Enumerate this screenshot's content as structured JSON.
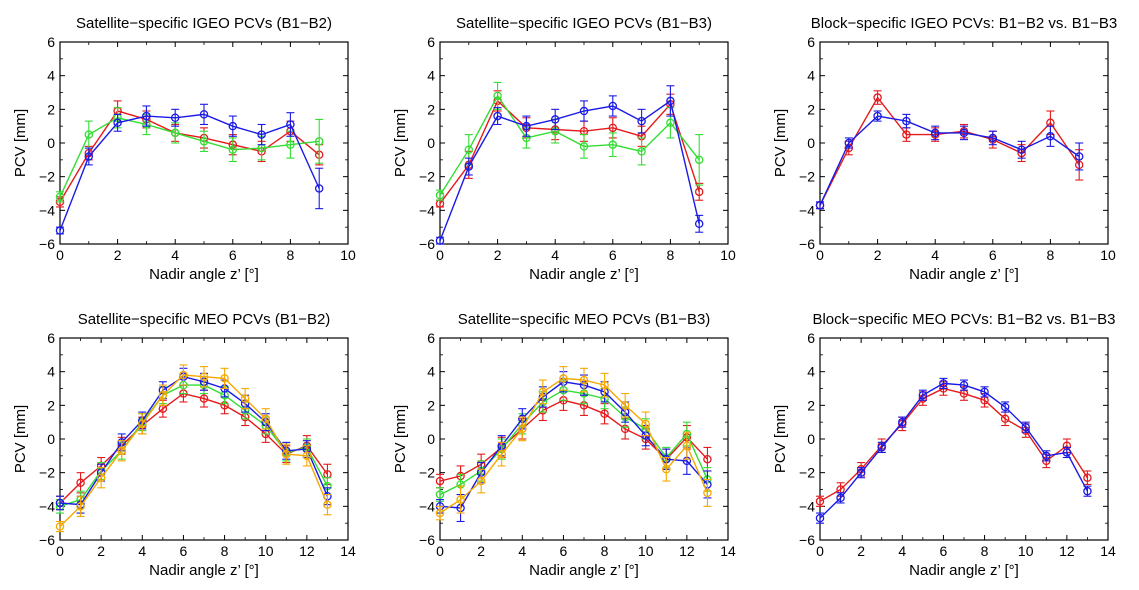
{
  "chart_data": [
    {
      "type": "line",
      "title": "Satellite−specific IGEO PCVs (B1−B2)",
      "xlabel": "Nadir angle z’ [°]",
      "ylabel": "PCV [mm]",
      "xlim": [
        0,
        10
      ],
      "ylim": [
        -6,
        6
      ],
      "xticks": [
        0,
        2,
        4,
        6,
        8,
        10
      ],
      "yticks": [
        -6,
        -4,
        -2,
        0,
        2,
        4,
        6
      ],
      "x": [
        0,
        1,
        2,
        3,
        4,
        5,
        6,
        7,
        8,
        9
      ],
      "series": [
        {
          "color": "#e41a1c",
          "values": [
            -3.5,
            -0.6,
            1.9,
            1.4,
            0.6,
            0.3,
            -0.1,
            -0.5,
            0.7,
            -0.7
          ],
          "errors": [
            0.3,
            0.4,
            0.6,
            0.5,
            0.5,
            0.6,
            0.6,
            0.6,
            0.6,
            0.6
          ]
        },
        {
          "color": "#33dd33",
          "values": [
            -3.2,
            0.5,
            1.5,
            1.1,
            0.6,
            0.1,
            -0.4,
            -0.3,
            -0.1,
            0.1
          ],
          "errors": [
            0.3,
            0.8,
            0.6,
            0.6,
            0.6,
            0.6,
            0.7,
            0.7,
            0.8,
            1.3
          ]
        },
        {
          "color": "#1a1ae6",
          "values": [
            -5.2,
            -0.8,
            1.2,
            1.6,
            1.5,
            1.7,
            1.0,
            0.5,
            1.1,
            -2.7
          ],
          "errors": [
            0.2,
            0.5,
            0.5,
            0.6,
            0.5,
            0.6,
            0.6,
            0.6,
            0.7,
            1.2
          ]
        }
      ]
    },
    {
      "type": "line",
      "title": "Satellite−specific IGEO PCVs (B1−B3)",
      "xlabel": "Nadir angle z’ [°]",
      "ylabel": "PCV [mm]",
      "xlim": [
        0,
        10
      ],
      "ylim": [
        -6,
        6
      ],
      "xticks": [
        0,
        2,
        4,
        6,
        8,
        10
      ],
      "yticks": [
        -6,
        -4,
        -2,
        0,
        2,
        4,
        6
      ],
      "x": [
        0,
        1,
        2,
        3,
        4,
        5,
        6,
        7,
        8,
        9
      ],
      "series": [
        {
          "color": "#e41a1c",
          "values": [
            -3.6,
            -1.3,
            2.5,
            0.9,
            0.8,
            0.7,
            0.9,
            0.4,
            2.3,
            -2.9
          ],
          "errors": [
            0.2,
            0.8,
            0.6,
            0.6,
            0.6,
            0.6,
            0.6,
            0.6,
            0.6,
            0.5
          ]
        },
        {
          "color": "#33dd33",
          "values": [
            -3.1,
            -0.4,
            2.8,
            0.3,
            0.7,
            -0.2,
            -0.1,
            -0.5,
            1.2,
            -1.0
          ],
          "errors": [
            0.3,
            0.9,
            0.8,
            0.6,
            0.7,
            0.7,
            0.7,
            0.8,
            0.9,
            1.5
          ]
        },
        {
          "color": "#1a1ae6",
          "values": [
            -5.8,
            -1.4,
            1.6,
            1.0,
            1.4,
            1.9,
            2.2,
            1.3,
            2.5,
            -4.8
          ],
          "errors": [
            0.2,
            0.5,
            0.5,
            0.6,
            0.6,
            0.6,
            0.6,
            0.7,
            0.9,
            0.5
          ]
        }
      ]
    },
    {
      "type": "line",
      "title": "Block−specific IGEO PCVs: B1−B2 vs. B1−B3",
      "xlabel": "Nadir angle z’ [°]",
      "ylabel": "PCV [mm]",
      "xlim": [
        0,
        10
      ],
      "ylim": [
        -6,
        6
      ],
      "xticks": [
        0,
        2,
        4,
        6,
        8,
        10
      ],
      "yticks": [
        -6,
        -4,
        -2,
        0,
        2,
        4,
        6
      ],
      "x": [
        0,
        1,
        2,
        3,
        4,
        5,
        6,
        7,
        8,
        9
      ],
      "series": [
        {
          "color": "#e41a1c",
          "values": [
            -3.7,
            -0.3,
            2.7,
            0.5,
            0.5,
            0.7,
            0.2,
            -0.6,
            1.2,
            -1.3
          ],
          "errors": [
            0.2,
            0.4,
            0.4,
            0.4,
            0.4,
            0.4,
            0.5,
            0.5,
            0.7,
            0.9
          ]
        },
        {
          "color": "#1a1ae6",
          "values": [
            -3.7,
            0.0,
            1.6,
            1.3,
            0.6,
            0.6,
            0.3,
            -0.4,
            0.4,
            -0.8
          ],
          "errors": [
            0.2,
            0.3,
            0.3,
            0.4,
            0.4,
            0.4,
            0.4,
            0.5,
            0.6,
            0.8
          ]
        }
      ]
    },
    {
      "type": "line",
      "title": "Satellite−specific MEO PCVs (B1−B2)",
      "xlabel": "Nadir angle z’ [°]",
      "ylabel": "PCV [mm]",
      "xlim": [
        0,
        14
      ],
      "ylim": [
        -6,
        6
      ],
      "xticks": [
        0,
        2,
        4,
        6,
        8,
        10,
        12,
        14
      ],
      "yticks": [
        -6,
        -4,
        -2,
        0,
        2,
        4,
        6
      ],
      "x": [
        0,
        1,
        2,
        3,
        4,
        5,
        6,
        7,
        8,
        9,
        10,
        11,
        12,
        13
      ],
      "series": [
        {
          "color": "#e41a1c",
          "values": [
            -3.8,
            -2.6,
            -1.6,
            -0.4,
            0.8,
            1.8,
            2.7,
            2.4,
            2.0,
            1.3,
            0.3,
            -0.9,
            -0.4,
            -2.1
          ],
          "errors": [
            0.4,
            0.6,
            0.5,
            0.5,
            0.5,
            0.5,
            0.5,
            0.5,
            0.5,
            0.5,
            0.5,
            0.5,
            0.6,
            0.6
          ]
        },
        {
          "color": "#33dd33",
          "values": [
            -4.0,
            -3.6,
            -1.9,
            -0.7,
            1.0,
            2.6,
            3.2,
            3.2,
            2.6,
            1.7,
            0.8,
            -0.8,
            -0.5,
            -2.8
          ],
          "errors": [
            0.4,
            0.5,
            0.5,
            0.5,
            0.5,
            0.5,
            0.5,
            0.5,
            0.5,
            0.5,
            0.5,
            0.5,
            0.5,
            0.5
          ]
        },
        {
          "color": "#1a1ae6",
          "values": [
            -3.8,
            -3.9,
            -2.0,
            -0.2,
            1.1,
            2.9,
            3.7,
            3.4,
            3.0,
            2.1,
            1.0,
            -0.7,
            -0.6,
            -3.4
          ],
          "errors": [
            0.4,
            0.5,
            0.5,
            0.5,
            0.5,
            0.5,
            0.5,
            0.5,
            0.5,
            0.5,
            0.5,
            0.5,
            0.5,
            0.5
          ]
        },
        {
          "color": "#f5a800",
          "values": [
            -5.2,
            -4.0,
            -2.3,
            -0.7,
            0.9,
            2.6,
            3.8,
            3.7,
            3.6,
            2.4,
            1.2,
            -0.9,
            -1.0,
            -3.9
          ],
          "errors": [
            0.3,
            0.6,
            0.6,
            0.6,
            0.6,
            0.6,
            0.6,
            0.6,
            0.6,
            0.6,
            0.6,
            0.6,
            0.6,
            0.6
          ]
        }
      ]
    },
    {
      "type": "line",
      "title": "Satellite−specific MEO PCVs (B1−B3)",
      "xlabel": "Nadir angle z’ [°]",
      "ylabel": "PCV [mm]",
      "xlim": [
        0,
        14
      ],
      "ylim": [
        -6,
        6
      ],
      "xticks": [
        0,
        2,
        4,
        6,
        8,
        10,
        12,
        14
      ],
      "yticks": [
        -6,
        -4,
        -2,
        0,
        2,
        4,
        6
      ],
      "x": [
        0,
        1,
        2,
        3,
        4,
        5,
        6,
        7,
        8,
        9,
        10,
        11,
        12,
        13
      ],
      "series": [
        {
          "color": "#e41a1c",
          "values": [
            -2.5,
            -2.2,
            -1.5,
            -0.5,
            0.6,
            1.7,
            2.3,
            2.0,
            1.5,
            0.6,
            0.0,
            -1.2,
            0.1,
            -1.2
          ],
          "errors": [
            0.4,
            0.6,
            0.6,
            0.6,
            0.6,
            0.6,
            0.6,
            0.6,
            0.6,
            0.6,
            0.6,
            0.6,
            0.7,
            0.7
          ]
        },
        {
          "color": "#33dd33",
          "values": [
            -3.3,
            -2.7,
            -1.9,
            -0.6,
            0.9,
            2.2,
            2.9,
            2.7,
            2.4,
            1.3,
            0.6,
            -1.1,
            0.3,
            -2.4
          ],
          "errors": [
            0.4,
            0.6,
            0.6,
            0.6,
            0.6,
            0.6,
            0.6,
            0.6,
            0.6,
            0.6,
            0.6,
            0.6,
            0.7,
            0.7
          ]
        },
        {
          "color": "#1a1ae6",
          "values": [
            -4.0,
            -4.1,
            -2.0,
            -0.4,
            1.2,
            2.5,
            3.4,
            3.2,
            2.8,
            1.6,
            0.2,
            -1.2,
            -1.3,
            -2.7
          ],
          "errors": [
            0.4,
            0.8,
            0.6,
            0.6,
            0.6,
            0.6,
            0.6,
            0.6,
            0.6,
            0.6,
            0.6,
            0.6,
            0.8,
            0.8
          ]
        },
        {
          "color": "#f5a800",
          "values": [
            -4.4,
            -3.6,
            -2.5,
            -0.9,
            0.6,
            2.8,
            3.6,
            3.5,
            3.2,
            2.0,
            0.9,
            -1.8,
            -0.4,
            -3.2
          ],
          "errors": [
            0.4,
            0.8,
            0.7,
            0.7,
            0.7,
            0.7,
            0.7,
            0.7,
            0.7,
            0.7,
            0.7,
            0.7,
            0.8,
            0.8
          ]
        }
      ]
    },
    {
      "type": "line",
      "title": "Block−specific MEO PCVs: B1−B2 vs. B1−B3",
      "xlabel": "Nadir angle z’ [°]",
      "ylabel": "PCV [mm]",
      "xlim": [
        0,
        14
      ],
      "ylim": [
        -6,
        6
      ],
      "xticks": [
        0,
        2,
        4,
        6,
        8,
        10,
        12,
        14
      ],
      "yticks": [
        -6,
        -4,
        -2,
        0,
        2,
        4,
        6
      ],
      "x": [
        0,
        1,
        2,
        3,
        4,
        5,
        6,
        7,
        8,
        9,
        10,
        11,
        12,
        13
      ],
      "series": [
        {
          "color": "#e41a1c",
          "values": [
            -3.7,
            -3.0,
            -1.8,
            -0.4,
            0.9,
            2.4,
            3.0,
            2.7,
            2.3,
            1.2,
            0.5,
            -1.3,
            -0.4,
            -2.3
          ],
          "errors": [
            0.3,
            0.4,
            0.4,
            0.4,
            0.4,
            0.4,
            0.4,
            0.4,
            0.4,
            0.4,
            0.4,
            0.4,
            0.4,
            0.4
          ]
        },
        {
          "color": "#1a1ae6",
          "values": [
            -4.7,
            -3.5,
            -2.0,
            -0.5,
            1.0,
            2.6,
            3.3,
            3.2,
            2.8,
            1.9,
            0.7,
            -1.0,
            -0.8,
            -3.1
          ],
          "errors": [
            0.3,
            0.3,
            0.3,
            0.3,
            0.3,
            0.3,
            0.3,
            0.3,
            0.3,
            0.3,
            0.3,
            0.3,
            0.3,
            0.3
          ]
        }
      ]
    }
  ]
}
